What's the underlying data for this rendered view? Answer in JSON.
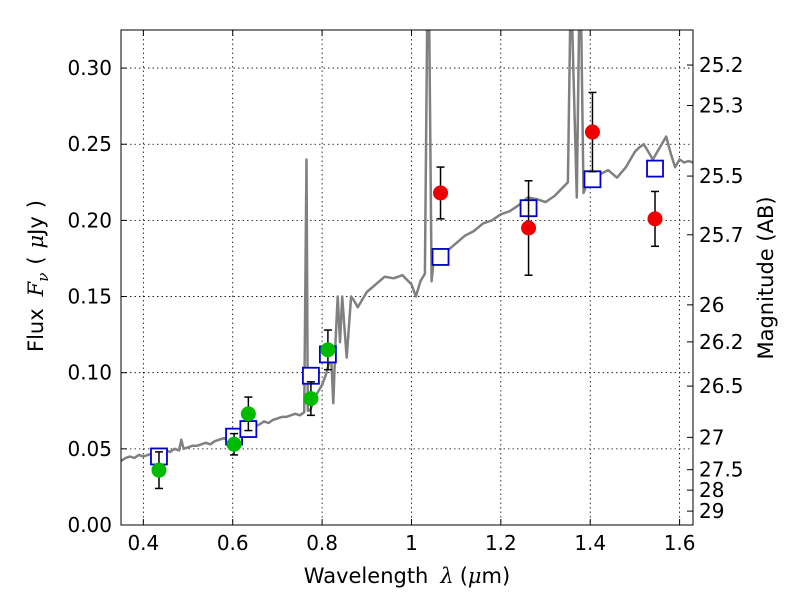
{
  "chart_data": {
    "type": "scatter",
    "title": "",
    "xlabel_text": "Wavelength",
    "xlabel_symbol": "λ",
    "xlabel_unit_open": "(",
    "xlabel_unit_mu": "μ",
    "xlabel_unit_rest": "m)",
    "ylabel_text": "Flux",
    "ylabel_symbol": "F",
    "ylabel_subscript": "ν",
    "ylabel_unit_open": "(",
    "ylabel_unit_mu": "μ",
    "ylabel_unit_rest": "Jy",
    "ylabel_unit_close": ")",
    "ylabel_right": "Magnitude (AB)",
    "xlim": [
      0.35,
      1.63
    ],
    "ylim": [
      0.0,
      0.325
    ],
    "grid": true,
    "x_ticks": [
      0.4,
      0.6,
      0.8,
      1.0,
      1.2,
      1.4,
      1.6
    ],
    "x_tick_labels": [
      "0.4",
      "0.6",
      "0.8",
      "1",
      "1.2",
      "1.4",
      "1.6"
    ],
    "y_ticks": [
      0.0,
      0.05,
      0.1,
      0.15,
      0.2,
      0.25,
      0.3
    ],
    "y_tick_labels": [
      "0.00",
      "0.05",
      "0.10",
      "0.15",
      "0.20",
      "0.25",
      "0.30"
    ],
    "right_ticks": [
      {
        "label": "25.2",
        "mag": 25.2
      },
      {
        "label": "25.3",
        "mag": 25.3
      },
      {
        "label": "25.5",
        "mag": 25.5
      },
      {
        "label": "25.7",
        "mag": 25.7
      },
      {
        "label": "26",
        "mag": 26.0
      },
      {
        "label": "26.2",
        "mag": 26.2
      },
      {
        "label": "26.5",
        "mag": 26.5
      },
      {
        "label": "27",
        "mag": 27.0
      },
      {
        "label": "27.5",
        "mag": 27.5
      },
      {
        "label": "28",
        "mag": 28.0
      },
      {
        "label": "29",
        "mag": 29.0
      }
    ],
    "series": [
      {
        "kind": "model_sed",
        "color": "#808080",
        "x": [
          0.35,
          0.36,
          0.37,
          0.38,
          0.39,
          0.4,
          0.41,
          0.42,
          0.43,
          0.44,
          0.45,
          0.46,
          0.47,
          0.48,
          0.485,
          0.49,
          0.5,
          0.51,
          0.52,
          0.53,
          0.54,
          0.55,
          0.56,
          0.57,
          0.58,
          0.59,
          0.6,
          0.61,
          0.62,
          0.63,
          0.64,
          0.65,
          0.66,
          0.67,
          0.68,
          0.69,
          0.7,
          0.71,
          0.72,
          0.73,
          0.74,
          0.75,
          0.76,
          0.765,
          0.768,
          0.771,
          0.774,
          0.777,
          0.78,
          0.79,
          0.8,
          0.81,
          0.82,
          0.825,
          0.83,
          0.835,
          0.84,
          0.845,
          0.85,
          0.855,
          0.86,
          0.865,
          0.87,
          0.88,
          0.89,
          0.9,
          0.92,
          0.94,
          0.96,
          0.98,
          1.0,
          1.01,
          1.02,
          1.03,
          1.035,
          1.04,
          1.045,
          1.05,
          1.055,
          1.06,
          1.08,
          1.1,
          1.12,
          1.14,
          1.16,
          1.18,
          1.2,
          1.22,
          1.24,
          1.26,
          1.28,
          1.3,
          1.32,
          1.34,
          1.35,
          1.355,
          1.36,
          1.37,
          1.375,
          1.38,
          1.385,
          1.39,
          1.4,
          1.42,
          1.44,
          1.46,
          1.48,
          1.49,
          1.5,
          1.51,
          1.52,
          1.53,
          1.54,
          1.55,
          1.56,
          1.57,
          1.58,
          1.59,
          1.6,
          1.61,
          1.62,
          1.63
        ],
        "y": [
          0.042,
          0.044,
          0.045,
          0.044,
          0.046,
          0.045,
          0.046,
          0.047,
          0.046,
          0.048,
          0.049,
          0.048,
          0.05,
          0.049,
          0.056,
          0.05,
          0.051,
          0.052,
          0.052,
          0.053,
          0.054,
          0.053,
          0.055,
          0.056,
          0.057,
          0.056,
          0.058,
          0.06,
          0.061,
          0.063,
          0.064,
          0.065,
          0.066,
          0.068,
          0.067,
          0.069,
          0.07,
          0.071,
          0.071,
          0.072,
          0.073,
          0.072,
          0.074,
          0.24,
          0.075,
          0.075,
          0.076,
          0.078,
          0.082,
          0.087,
          0.092,
          0.1,
          0.112,
          0.08,
          0.12,
          0.15,
          0.12,
          0.15,
          0.13,
          0.11,
          0.13,
          0.15,
          0.148,
          0.143,
          0.148,
          0.153,
          0.158,
          0.163,
          0.162,
          0.164,
          0.158,
          0.15,
          0.16,
          0.165,
          0.325,
          0.325,
          0.16,
          0.175,
          0.172,
          0.176,
          0.18,
          0.185,
          0.19,
          0.193,
          0.198,
          0.2,
          0.204,
          0.206,
          0.21,
          0.215,
          0.214,
          0.212,
          0.216,
          0.222,
          0.225,
          0.325,
          0.325,
          0.215,
          0.325,
          0.325,
          0.218,
          0.222,
          0.228,
          0.23,
          0.233,
          0.228,
          0.235,
          0.24,
          0.245,
          0.248,
          0.25,
          0.245,
          0.24,
          0.245,
          0.25,
          0.255,
          0.244,
          0.235,
          0.24,
          0.238,
          0.239,
          0.238
        ]
      },
      {
        "kind": "model_points",
        "color": "#0000cc",
        "x": [
          0.435,
          0.603,
          0.635,
          0.775,
          0.813,
          1.065,
          1.262,
          1.405,
          1.545
        ],
        "y": [
          0.045,
          0.058,
          0.063,
          0.098,
          0.112,
          0.176,
          0.208,
          0.227,
          0.234
        ]
      },
      {
        "kind": "observed_green",
        "color": "#00bb00",
        "x": [
          0.435,
          0.603,
          0.635,
          0.775,
          0.813
        ],
        "y": [
          0.036,
          0.053,
          0.073,
          0.083,
          0.115
        ],
        "err": [
          0.012,
          0.007,
          0.011,
          0.011,
          0.013
        ]
      },
      {
        "kind": "observed_red",
        "color": "#ee0000",
        "x": [
          1.065,
          1.262,
          1.405,
          1.545
        ],
        "y": [
          0.218,
          0.195,
          0.258,
          0.201
        ],
        "err": [
          0.017,
          0.031,
          0.026,
          0.018
        ]
      }
    ]
  }
}
